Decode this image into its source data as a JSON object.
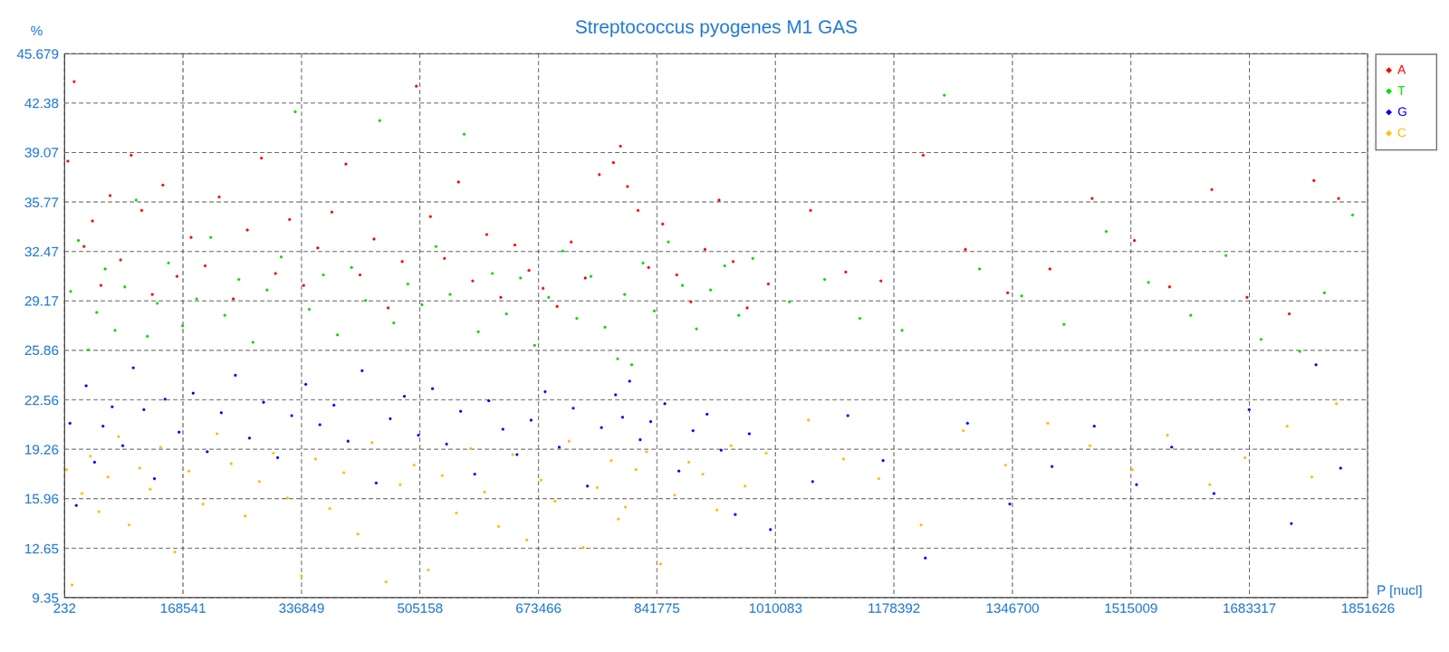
{
  "chart_data": {
    "type": "scatter",
    "title": "Streptococcus pyogenes M1 GAS",
    "y_label": "%",
    "x_label": "P [nucl]",
    "xlim": [
      232,
      1851626
    ],
    "xticks": [
      232,
      168541,
      336849,
      505158,
      673466,
      841775,
      1010083,
      1178392,
      1346700,
      1515009,
      1683317,
      1851626
    ],
    "ylim": [
      9.35,
      45.679
    ],
    "yticks": [
      9.35,
      12.65,
      15.96,
      19.26,
      22.56,
      25.86,
      29.17,
      32.47,
      35.77,
      39.07,
      42.38,
      45.679
    ],
    "grid": true,
    "legend": "top-right",
    "series": [
      {
        "name": "A",
        "color": "#ff0000",
        "x": [
          5000,
          14000,
          28000,
          40000,
          52000,
          65000,
          80000,
          95000,
          110000,
          125000,
          140000,
          160000,
          180000,
          200000,
          220000,
          240000,
          260000,
          280000,
          300000,
          320000,
          340000,
          360000,
          380000,
          400000,
          420000,
          440000,
          460000,
          480000,
          500000,
          520000,
          540000,
          560000,
          580000,
          600000,
          620000,
          640000,
          660000,
          680000,
          700000,
          720000,
          740000,
          760000,
          780000,
          790000,
          800000,
          815000,
          830000,
          850000,
          870000,
          890000,
          910000,
          930000,
          950000,
          970000,
          1000000,
          1060000,
          1110000,
          1160000,
          1220000,
          1280000,
          1340000,
          1400000,
          1460000,
          1520000,
          1570000,
          1630000,
          1680000,
          1740000,
          1775000,
          1810000
        ],
        "values": [
          38.5,
          43.8,
          32.8,
          34.5,
          30.2,
          36.2,
          31.9,
          38.9,
          35.2,
          29.6,
          36.9,
          30.8,
          33.4,
          31.5,
          36.1,
          29.3,
          33.9,
          38.7,
          31.0,
          34.6,
          30.2,
          32.7,
          35.1,
          38.3,
          30.9,
          33.3,
          28.7,
          31.8,
          43.5,
          34.8,
          32.0,
          37.1,
          30.5,
          33.6,
          29.4,
          32.9,
          31.2,
          30.0,
          28.8,
          33.1,
          30.7,
          37.6,
          38.4,
          39.5,
          36.8,
          35.2,
          31.4,
          34.3,
          30.9,
          29.1,
          32.6,
          35.9,
          31.8,
          28.7,
          30.3,
          35.2,
          31.1,
          30.5,
          38.9,
          32.6,
          29.7,
          31.3,
          36.0,
          33.2,
          30.1,
          36.6,
          29.4,
          28.3,
          37.2,
          36.0
        ]
      },
      {
        "name": "T",
        "color": "#00dd00",
        "x": [
          9000,
          20000,
          34000,
          46000,
          58000,
          72000,
          86000,
          102000,
          118000,
          132000,
          148000,
          168000,
          188000,
          208000,
          228000,
          248000,
          268000,
          288000,
          308000,
          328000,
          348000,
          368000,
          388000,
          408000,
          428000,
          448000,
          468000,
          488000,
          508000,
          528000,
          548000,
          568000,
          588000,
          608000,
          628000,
          648000,
          668000,
          688000,
          708000,
          728000,
          748000,
          768000,
          786000,
          796000,
          806000,
          822000,
          838000,
          858000,
          878000,
          898000,
          918000,
          938000,
          958000,
          978000,
          1030000,
          1080000,
          1130000,
          1190000,
          1250000,
          1300000,
          1360000,
          1420000,
          1480000,
          1540000,
          1600000,
          1650000,
          1700000,
          1755000,
          1790000,
          1830000
        ],
        "values": [
          29.8,
          33.2,
          25.9,
          28.4,
          31.3,
          27.2,
          30.1,
          35.9,
          26.8,
          29.0,
          31.7,
          27.5,
          29.3,
          33.4,
          28.2,
          30.6,
          26.4,
          29.9,
          32.1,
          41.8,
          28.6,
          30.9,
          26.9,
          31.4,
          29.2,
          41.2,
          27.7,
          30.3,
          28.9,
          32.8,
          29.6,
          40.3,
          27.1,
          31.0,
          28.3,
          30.7,
          26.2,
          29.4,
          32.5,
          28.0,
          30.8,
          27.4,
          25.3,
          29.6,
          24.9,
          31.7,
          28.5,
          33.1,
          30.2,
          27.3,
          29.9,
          31.5,
          28.2,
          32.0,
          29.1,
          30.6,
          28.0,
          27.2,
          42.9,
          31.3,
          29.5,
          27.6,
          33.8,
          30.4,
          28.2,
          32.2,
          26.6,
          25.8,
          29.7,
          34.9
        ]
      },
      {
        "name": "G",
        "color": "#0000ff",
        "x": [
          8000,
          17000,
          31000,
          43000,
          55000,
          68000,
          83000,
          98000,
          113000,
          128000,
          143000,
          163000,
          183000,
          203000,
          223000,
          243000,
          263000,
          283000,
          303000,
          323000,
          343000,
          363000,
          383000,
          403000,
          423000,
          443000,
          463000,
          483000,
          503000,
          523000,
          543000,
          563000,
          583000,
          603000,
          623000,
          643000,
          663000,
          683000,
          703000,
          723000,
          743000,
          763000,
          783000,
          793000,
          803000,
          818000,
          833000,
          853000,
          873000,
          893000,
          913000,
          933000,
          953000,
          973000,
          1003000,
          1063000,
          1113000,
          1163000,
          1223000,
          1283000,
          1343000,
          1403000,
          1463000,
          1523000,
          1573000,
          1633000,
          1683000,
          1743000,
          1778000,
          1813000
        ],
        "values": [
          21.0,
          15.5,
          23.5,
          18.4,
          20.8,
          22.1,
          19.5,
          24.7,
          21.9,
          17.3,
          22.6,
          20.4,
          23.0,
          19.1,
          21.7,
          24.2,
          20.0,
          22.4,
          18.7,
          21.5,
          23.6,
          20.9,
          22.2,
          19.8,
          24.5,
          17.0,
          21.3,
          22.8,
          20.2,
          23.3,
          19.6,
          21.8,
          17.6,
          22.5,
          20.6,
          18.9,
          21.2,
          23.1,
          19.4,
          22.0,
          16.8,
          20.7,
          22.9,
          21.4,
          23.8,
          19.9,
          21.1,
          22.3,
          17.8,
          20.5,
          21.6,
          19.2,
          14.9,
          20.3,
          13.9,
          17.1,
          21.5,
          18.5,
          12.0,
          21.0,
          15.6,
          18.1,
          20.8,
          16.9,
          19.4,
          16.3,
          21.9,
          14.3,
          24.9,
          18.0
        ]
      },
      {
        "name": "C",
        "color": "#ffc000",
        "x": [
          3000,
          11000,
          25000,
          37000,
          49000,
          62000,
          77000,
          92000,
          107000,
          122000,
          137000,
          157000,
          177000,
          197000,
          217000,
          237000,
          257000,
          277000,
          297000,
          317000,
          337000,
          357000,
          377000,
          397000,
          417000,
          437000,
          457000,
          477000,
          497000,
          517000,
          537000,
          557000,
          577000,
          597000,
          617000,
          637000,
          657000,
          677000,
          697000,
          717000,
          737000,
          757000,
          777000,
          787000,
          797000,
          812000,
          827000,
          847000,
          867000,
          887000,
          907000,
          927000,
          947000,
          967000,
          997000,
          1057000,
          1107000,
          1157000,
          1217000,
          1277000,
          1337000,
          1397000,
          1457000,
          1517000,
          1567000,
          1627000,
          1677000,
          1737000,
          1772000,
          1807000
        ],
        "values": [
          17.9,
          10.2,
          16.3,
          18.8,
          15.1,
          17.4,
          20.1,
          14.2,
          18.0,
          16.6,
          19.4,
          12.4,
          17.8,
          15.6,
          20.3,
          18.3,
          14.8,
          17.1,
          19.0,
          16.0,
          10.8,
          18.6,
          15.3,
          17.7,
          13.6,
          19.7,
          10.4,
          16.9,
          18.2,
          11.2,
          17.5,
          15.0,
          19.3,
          16.4,
          14.1,
          18.9,
          13.2,
          17.2,
          15.8,
          19.8,
          12.7,
          16.7,
          18.5,
          14.6,
          15.4,
          17.9,
          19.1,
          11.6,
          16.2,
          18.4,
          17.6,
          15.2,
          19.5,
          16.8,
          19.0,
          21.2,
          18.6,
          17.3,
          14.2,
          20.5,
          18.2,
          21.0,
          19.5,
          17.9,
          20.2,
          16.9,
          18.7,
          20.8,
          17.4,
          22.3
        ]
      }
    ]
  }
}
